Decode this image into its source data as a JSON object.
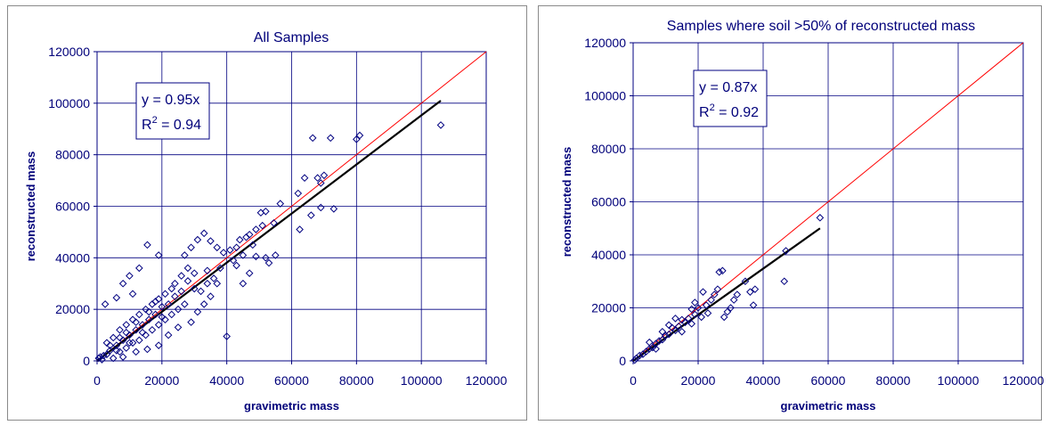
{
  "chart_data": [
    {
      "type": "scatter",
      "title": "All Samples",
      "xlabel": "gravimetric mass",
      "ylabel": "reconstructed mass",
      "xlim": [
        0,
        120000
      ],
      "ylim": [
        0,
        120000
      ],
      "xticks": [
        "0",
        "20000",
        "40000",
        "60000",
        "80000",
        "100000",
        "120000"
      ],
      "yticks": [
        "0",
        "20000",
        "40000",
        "60000",
        "80000",
        "100000",
        "120000"
      ],
      "grid": true,
      "annotation": {
        "line1": "y = 0.95x",
        "r2_prefix": "R",
        "r2_sup": "2",
        "r2_suffix": " = 0.94"
      },
      "lines": [
        {
          "kind": "1:1 reference",
          "color": "#ff0000",
          "x": [
            0,
            120000
          ],
          "y": [
            0,
            120000
          ]
        },
        {
          "kind": "regression fit",
          "color": "#000000",
          "x": [
            0,
            106000
          ],
          "y": [
            0,
            101000
          ]
        }
      ],
      "marker_color": "#000080",
      "points": [
        [
          106000,
          91500
        ],
        [
          81000,
          87500
        ],
        [
          80000,
          86000
        ],
        [
          72000,
          86500
        ],
        [
          66500,
          86500
        ],
        [
          70000,
          72000
        ],
        [
          68000,
          71000
        ],
        [
          64000,
          71000
        ],
        [
          69000,
          69000
        ],
        [
          62000,
          65000
        ],
        [
          73000,
          59000
        ],
        [
          66000,
          56500
        ],
        [
          69000,
          59500
        ],
        [
          62500,
          51000
        ],
        [
          52000,
          58000
        ],
        [
          50500,
          57500
        ],
        [
          56500,
          61000
        ],
        [
          54500,
          53500
        ],
        [
          51000,
          52500
        ],
        [
          49000,
          51000
        ],
        [
          47000,
          49000
        ],
        [
          46000,
          48000
        ],
        [
          44000,
          47000
        ],
        [
          45000,
          41000
        ],
        [
          55000,
          41000
        ],
        [
          52000,
          40000
        ],
        [
          49000,
          40500
        ],
        [
          53000,
          38000
        ],
        [
          47000,
          34000
        ],
        [
          45000,
          30000
        ],
        [
          43000,
          37000
        ],
        [
          41000,
          43000
        ],
        [
          39000,
          42000
        ],
        [
          37000,
          44000
        ],
        [
          35000,
          46500
        ],
        [
          33000,
          49500
        ],
        [
          31000,
          47000
        ],
        [
          29000,
          44000
        ],
        [
          27000,
          41000
        ],
        [
          15500,
          45000
        ],
        [
          19000,
          41000
        ],
        [
          13000,
          36000
        ],
        [
          10000,
          33000
        ],
        [
          8000,
          30000
        ],
        [
          11000,
          26000
        ],
        [
          6000,
          24500
        ],
        [
          2500,
          22000
        ],
        [
          40000,
          9500
        ],
        [
          35000,
          25000
        ],
        [
          33000,
          22000
        ],
        [
          31000,
          19000
        ],
        [
          29000,
          15000
        ],
        [
          25000,
          13000
        ],
        [
          22000,
          10000
        ],
        [
          19000,
          6000
        ],
        [
          15500,
          4500
        ],
        [
          12000,
          3500
        ],
        [
          8000,
          1500
        ],
        [
          5000,
          1000
        ],
        [
          36000,
          32000
        ],
        [
          34000,
          30000
        ],
        [
          32000,
          27000
        ],
        [
          30000,
          28000
        ],
        [
          28000,
          31000
        ],
        [
          26000,
          27000
        ],
        [
          24000,
          25000
        ],
        [
          22000,
          22000
        ],
        [
          20000,
          21000
        ],
        [
          18000,
          18000
        ],
        [
          16000,
          16000
        ],
        [
          14000,
          14000
        ],
        [
          12000,
          12000
        ],
        [
          10000,
          10000
        ],
        [
          8000,
          8000
        ],
        [
          6000,
          6000
        ],
        [
          4000,
          4000
        ],
        [
          2000,
          2000
        ],
        [
          23000,
          28000
        ],
        [
          21000,
          26000
        ],
        [
          19000,
          24000
        ],
        [
          17000,
          22000
        ],
        [
          15000,
          20000
        ],
        [
          13000,
          18000
        ],
        [
          11000,
          16000
        ],
        [
          9000,
          14000
        ],
        [
          7000,
          12000
        ],
        [
          5000,
          9000
        ],
        [
          3000,
          7000
        ],
        [
          27000,
          22000
        ],
        [
          25000,
          20000
        ],
        [
          23000,
          18000
        ],
        [
          21000,
          16000
        ],
        [
          19000,
          14000
        ],
        [
          17000,
          12000
        ],
        [
          15000,
          10000
        ],
        [
          13000,
          8000
        ],
        [
          11000,
          7000
        ],
        [
          9000,
          5000
        ],
        [
          7000,
          3500
        ],
        [
          30000,
          34000
        ],
        [
          28000,
          36000
        ],
        [
          26000,
          33000
        ],
        [
          38000,
          36000
        ],
        [
          37000,
          30000
        ],
        [
          34000,
          35000
        ],
        [
          42000,
          39000
        ],
        [
          43000,
          44000
        ],
        [
          48000,
          45000
        ],
        [
          24000,
          30000
        ],
        [
          20000,
          17000
        ],
        [
          18000,
          23000
        ],
        [
          16000,
          19000
        ],
        [
          14000,
          11000
        ],
        [
          12000,
          15000
        ],
        [
          10000,
          7000
        ],
        [
          9000,
          11000
        ],
        [
          7000,
          9000
        ],
        [
          6000,
          4000
        ],
        [
          4000,
          6000
        ],
        [
          3000,
          2500
        ],
        [
          1000,
          1500
        ],
        [
          1500,
          500
        ],
        [
          500,
          1000
        ]
      ]
    },
    {
      "type": "scatter",
      "title": "Samples where soil >50% of reconstructed mass",
      "xlabel": "gravimetric mass",
      "ylabel": "reconstructed mass",
      "xlim": [
        0,
        120000
      ],
      "ylim": [
        0,
        120000
      ],
      "xticks": [
        "0",
        "20000",
        "40000",
        "60000",
        "80000",
        "100000",
        "120000"
      ],
      "yticks": [
        "0",
        "20000",
        "40000",
        "60000",
        "80000",
        "100000",
        "120000"
      ],
      "grid": true,
      "annotation": {
        "line1": "y = 0.87x",
        "r2_prefix": "R",
        "r2_sup": "2",
        "r2_suffix": " = 0.92"
      },
      "lines": [
        {
          "kind": "1:1 reference",
          "color": "#ff0000",
          "x": [
            0,
            120000
          ],
          "y": [
            0,
            120000
          ]
        },
        {
          "kind": "regression fit",
          "color": "#000000",
          "x": [
            0,
            57500
          ],
          "y": [
            0,
            50000
          ]
        }
      ],
      "marker_color": "#000080",
      "points": [
        [
          57500,
          54000
        ],
        [
          47000,
          41500
        ],
        [
          46500,
          30000
        ],
        [
          37500,
          27000
        ],
        [
          36000,
          26000
        ],
        [
          37000,
          21000
        ],
        [
          34500,
          30000
        ],
        [
          27500,
          34000
        ],
        [
          26500,
          33500
        ],
        [
          29000,
          18500
        ],
        [
          28000,
          16500
        ],
        [
          30000,
          20000
        ],
        [
          25000,
          25000
        ],
        [
          24000,
          23000
        ],
        [
          22500,
          21000
        ],
        [
          21500,
          26000
        ],
        [
          20000,
          20000
        ],
        [
          19000,
          17500
        ],
        [
          18000,
          19500
        ],
        [
          17000,
          16000
        ],
        [
          16000,
          14500
        ],
        [
          15000,
          15500
        ],
        [
          14000,
          13000
        ],
        [
          13000,
          11500
        ],
        [
          12000,
          12500
        ],
        [
          11000,
          10000
        ],
        [
          10000,
          9500
        ],
        [
          9000,
          8000
        ],
        [
          8000,
          7500
        ],
        [
          7000,
          6500
        ],
        [
          6000,
          5000
        ],
        [
          5000,
          4500
        ],
        [
          4000,
          3500
        ],
        [
          3000,
          2500
        ],
        [
          2000,
          2000
        ],
        [
          1000,
          1000
        ],
        [
          500,
          300
        ],
        [
          23000,
          18000
        ],
        [
          21000,
          16500
        ],
        [
          19000,
          22000
        ],
        [
          15000,
          11000
        ],
        [
          13000,
          16000
        ],
        [
          11000,
          13500
        ],
        [
          9000,
          11000
        ],
        [
          7000,
          4500
        ],
        [
          5000,
          7000
        ],
        [
          31000,
          23000
        ],
        [
          26000,
          27000
        ],
        [
          32000,
          25000
        ],
        [
          18000,
          14000
        ]
      ]
    }
  ]
}
